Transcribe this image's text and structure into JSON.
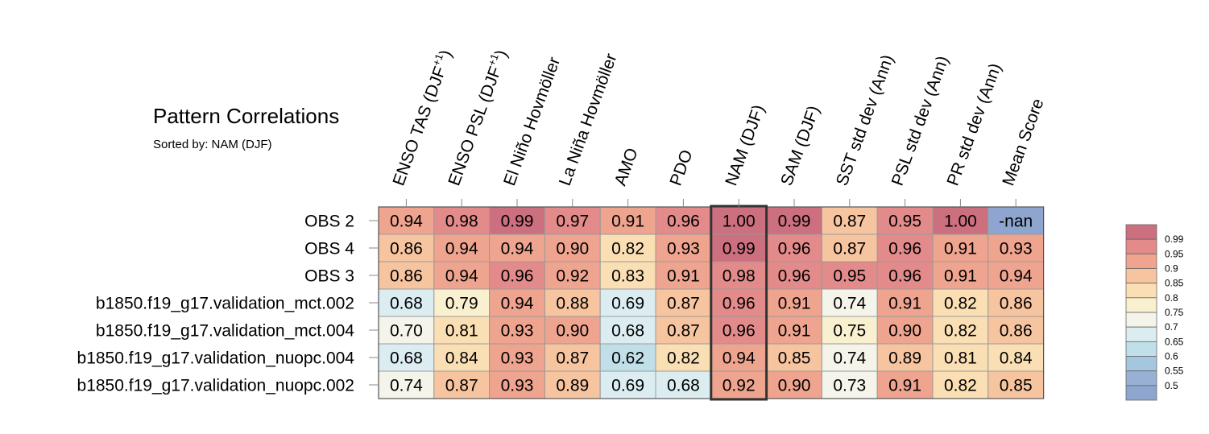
{
  "chart_data": {
    "type": "heatmap",
    "title": "Pattern Correlations",
    "subtitle": "Sorted by: NAM (DJF)",
    "columns": [
      {
        "plain": "ENSO TAS (DJF",
        "sup": "+1",
        "suffix": ")"
      },
      {
        "plain": "ENSO PSL (DJF",
        "sup": "+1",
        "suffix": ")"
      },
      {
        "plain": "El Niño Hovmöller"
      },
      {
        "plain": "La Niña Hovmöller"
      },
      {
        "plain": "AMO"
      },
      {
        "plain": "PDO"
      },
      {
        "plain": "NAM (DJF)"
      },
      {
        "plain": "SAM (DJF)"
      },
      {
        "plain": "SST std dev (Ann)"
      },
      {
        "plain": "PSL std dev (Ann)"
      },
      {
        "plain": "PR std dev (Ann)"
      },
      {
        "plain": "Mean Score"
      }
    ],
    "rows": [
      "OBS 2",
      "OBS 4",
      "OBS 3",
      "b1850.f19_g17.validation_mct.002",
      "b1850.f19_g17.validation_mct.004",
      "b1850.f19_g17.validation_nuopc.004",
      "b1850.f19_g17.validation_nuopc.002"
    ],
    "values": [
      [
        "0.94",
        "0.98",
        "0.99",
        "0.97",
        "0.91",
        "0.96",
        "1.00",
        "0.99",
        "0.87",
        "0.95",
        "1.00",
        "-nan"
      ],
      [
        "0.86",
        "0.94",
        "0.94",
        "0.90",
        "0.82",
        "0.93",
        "0.99",
        "0.96",
        "0.87",
        "0.96",
        "0.91",
        "0.93"
      ],
      [
        "0.86",
        "0.94",
        "0.96",
        "0.92",
        "0.83",
        "0.91",
        "0.98",
        "0.96",
        "0.95",
        "0.96",
        "0.91",
        "0.94"
      ],
      [
        "0.68",
        "0.79",
        "0.94",
        "0.88",
        "0.69",
        "0.87",
        "0.96",
        "0.91",
        "0.74",
        "0.91",
        "0.82",
        "0.86"
      ],
      [
        "0.70",
        "0.81",
        "0.93",
        "0.90",
        "0.68",
        "0.87",
        "0.96",
        "0.91",
        "0.75",
        "0.90",
        "0.82",
        "0.86"
      ],
      [
        "0.68",
        "0.84",
        "0.93",
        "0.87",
        "0.62",
        "0.82",
        "0.94",
        "0.85",
        "0.74",
        "0.89",
        "0.81",
        "0.84"
      ],
      [
        "0.74",
        "0.87",
        "0.93",
        "0.89",
        "0.69",
        "0.68",
        "0.92",
        "0.90",
        "0.73",
        "0.91",
        "0.82",
        "0.85"
      ]
    ],
    "highlighted_column": "NAM (DJF)",
    "colorbar": {
      "levels": [
        "0.99",
        "0.95",
        "0.9",
        "0.85",
        "0.8",
        "0.75",
        "0.7",
        "0.65",
        "0.6",
        "0.55",
        "0.5"
      ],
      "colors": [
        "#cc6f7f",
        "#e38a8a",
        "#eea48e",
        "#f7c4a0",
        "#fbdfb4",
        "#f8f0cf",
        "#f4f4ea",
        "#dcedf1",
        "#c0dfe9",
        "#a5c6df",
        "#98b0d3",
        "#8ea6cf"
      ]
    },
    "nan_color": "#8ea6cf"
  }
}
